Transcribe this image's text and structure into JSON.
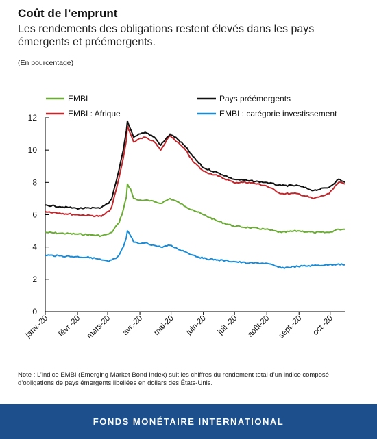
{
  "title": "Coût de l’emprunt",
  "subtitle": "Les rendements des obligations restent élevés dans les pays émergents et préémergents.",
  "unit_note": "(En pourcentage)",
  "note": "Note : L’indice EMBI (Emerging Market Bond Index) suit les chiffres du rendement total d’un indice composé d’obligations de pays émergents libellées en dollars des États-Unis.",
  "footer": "FONDS MONÉTAIRE INTERNATIONAL",
  "chart_data": {
    "type": "line",
    "title": "",
    "xlabel": "",
    "ylabel": "",
    "ylim": [
      0,
      12
    ],
    "yticks": [
      "0",
      "2",
      "4",
      "6",
      "8",
      "10",
      "12"
    ],
    "xtick_labels": [
      "janv.-20",
      "févr.-20",
      "mars-20",
      "avr.-20",
      "mai-20",
      "juin-20",
      "juil.-20",
      "août-20",
      "sept.-20",
      "oct.-20"
    ],
    "grid": false,
    "legend_position": "top",
    "series": [
      {
        "name": "EMBI",
        "color": "#6aaa35",
        "x": [
          "2020-01-01",
          "2020-01-15",
          "2020-01-31",
          "2020-02-14",
          "2020-02-24",
          "2020-03-02",
          "2020-03-05",
          "2020-03-09",
          "2020-03-12",
          "2020-03-16",
          "2020-03-19",
          "2020-03-20",
          "2020-03-23",
          "2020-03-26",
          "2020-03-31",
          "2020-04-06",
          "2020-04-15",
          "2020-04-21",
          "2020-04-30",
          "2020-05-07",
          "2020-05-15",
          "2020-05-22",
          "2020-06-01",
          "2020-06-15",
          "2020-06-30",
          "2020-07-15",
          "2020-07-31",
          "2020-08-15",
          "2020-08-31",
          "2020-09-15",
          "2020-09-30",
          "2020-10-09",
          "2020-10-15"
        ],
        "values": [
          4.9,
          4.85,
          4.8,
          4.75,
          4.7,
          4.8,
          4.9,
          5.3,
          5.5,
          6.3,
          7.1,
          7.9,
          7.6,
          7.0,
          6.9,
          6.9,
          6.8,
          6.7,
          7.0,
          6.8,
          6.5,
          6.3,
          6.0,
          5.6,
          5.3,
          5.2,
          5.1,
          4.9,
          5.0,
          4.9,
          4.9,
          5.1,
          5.1
        ]
      },
      {
        "name": "EMBI : Afrique",
        "color": "#c0282d",
        "x": [
          "2020-01-01",
          "2020-01-15",
          "2020-01-31",
          "2020-02-14",
          "2020-02-24",
          "2020-03-02",
          "2020-03-05",
          "2020-03-09",
          "2020-03-12",
          "2020-03-16",
          "2020-03-19",
          "2020-03-20",
          "2020-03-23",
          "2020-03-26",
          "2020-03-31",
          "2020-04-06",
          "2020-04-15",
          "2020-04-21",
          "2020-04-30",
          "2020-05-07",
          "2020-05-15",
          "2020-05-22",
          "2020-06-01",
          "2020-06-15",
          "2020-06-30",
          "2020-07-15",
          "2020-07-31",
          "2020-08-15",
          "2020-08-31",
          "2020-09-15",
          "2020-09-30",
          "2020-10-09",
          "2020-10-15"
        ],
        "values": [
          6.2,
          6.1,
          6.0,
          5.95,
          5.9,
          6.2,
          6.5,
          7.5,
          8.3,
          9.5,
          10.6,
          11.5,
          11.0,
          10.5,
          10.7,
          10.8,
          10.5,
          10.0,
          10.9,
          10.5,
          10.0,
          9.3,
          8.7,
          8.4,
          8.0,
          8.0,
          7.8,
          7.3,
          7.3,
          7.0,
          7.3,
          8.0,
          7.9
        ]
      },
      {
        "name": "Pays préémergents",
        "color": "#111111",
        "x": [
          "2020-01-01",
          "2020-01-15",
          "2020-01-31",
          "2020-02-14",
          "2020-02-24",
          "2020-03-02",
          "2020-03-05",
          "2020-03-09",
          "2020-03-12",
          "2020-03-16",
          "2020-03-19",
          "2020-03-20",
          "2020-03-23",
          "2020-03-26",
          "2020-03-31",
          "2020-04-06",
          "2020-04-15",
          "2020-04-21",
          "2020-04-30",
          "2020-05-07",
          "2020-05-15",
          "2020-05-22",
          "2020-06-01",
          "2020-06-15",
          "2020-06-30",
          "2020-07-15",
          "2020-07-31",
          "2020-08-15",
          "2020-08-31",
          "2020-09-15",
          "2020-09-30",
          "2020-10-09",
          "2020-10-15"
        ],
        "values": [
          6.6,
          6.5,
          6.4,
          6.4,
          6.45,
          6.7,
          7.0,
          8.0,
          8.8,
          10.0,
          11.2,
          11.8,
          11.3,
          10.8,
          11.0,
          11.1,
          10.8,
          10.3,
          11.0,
          10.7,
          10.2,
          9.6,
          8.9,
          8.6,
          8.2,
          8.1,
          8.0,
          7.8,
          7.8,
          7.5,
          7.7,
          8.2,
          8.0
        ]
      },
      {
        "name": "EMBI : catégorie investissement",
        "color": "#1a8ad4",
        "x": [
          "2020-01-01",
          "2020-01-15",
          "2020-01-31",
          "2020-02-14",
          "2020-02-24",
          "2020-03-02",
          "2020-03-05",
          "2020-03-09",
          "2020-03-12",
          "2020-03-16",
          "2020-03-19",
          "2020-03-20",
          "2020-03-23",
          "2020-03-26",
          "2020-03-31",
          "2020-04-06",
          "2020-04-15",
          "2020-04-21",
          "2020-04-30",
          "2020-05-07",
          "2020-05-15",
          "2020-05-22",
          "2020-06-01",
          "2020-06-15",
          "2020-06-30",
          "2020-07-15",
          "2020-07-31",
          "2020-08-15",
          "2020-08-31",
          "2020-09-15",
          "2020-09-30",
          "2020-10-09",
          "2020-10-15"
        ],
        "values": [
          3.5,
          3.45,
          3.4,
          3.35,
          3.2,
          3.1,
          3.2,
          3.3,
          3.5,
          4.0,
          4.6,
          5.0,
          4.7,
          4.3,
          4.2,
          4.25,
          4.1,
          4.0,
          4.1,
          3.9,
          3.7,
          3.5,
          3.3,
          3.2,
          3.1,
          3.0,
          3.0,
          2.7,
          2.8,
          2.85,
          2.9,
          2.95,
          2.9
        ]
      }
    ]
  }
}
